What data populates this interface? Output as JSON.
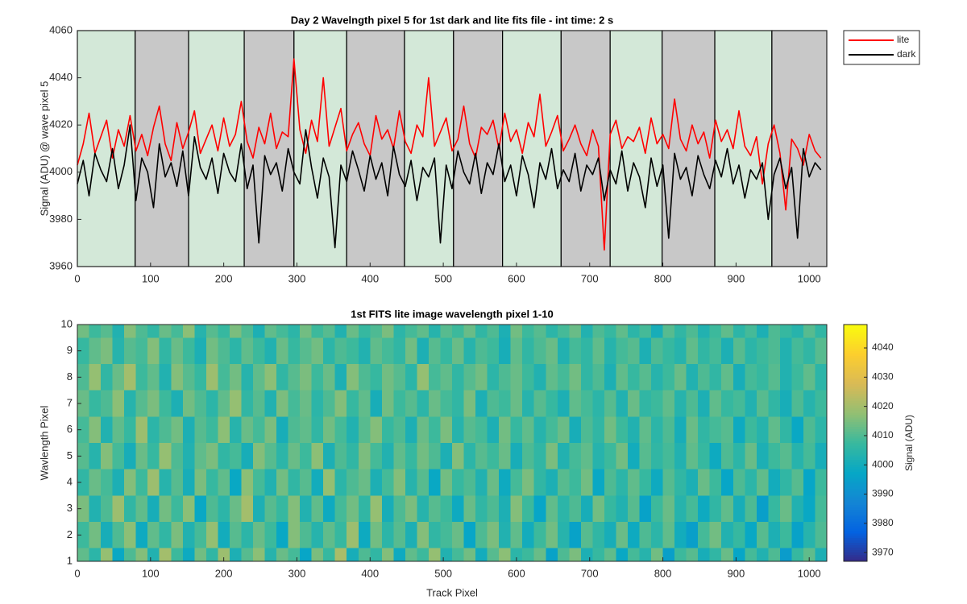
{
  "chart_data": [
    {
      "type": "line",
      "title": "Day 2 Wavelngth pixel 5 for 1st dark and lite fits file - int time: 2 s",
      "y_label": "Signal (ADU) @ wave pixel 5",
      "xlim": [
        0,
        1024
      ],
      "xticks": [
        0,
        100,
        200,
        300,
        400,
        500,
        600,
        700,
        800,
        900,
        1000
      ],
      "ylim": [
        3960,
        4060
      ],
      "yticks": [
        3960,
        3980,
        4000,
        4020,
        4040,
        4060
      ],
      "legend": "outside-top-right",
      "regions": [
        {
          "start": 0,
          "end": 79,
          "color": "#d3e8d8"
        },
        {
          "start": 79,
          "end": 152,
          "color": "#c8c8c8"
        },
        {
          "start": 152,
          "end": 228,
          "color": "#d3e8d8"
        },
        {
          "start": 228,
          "end": 296,
          "color": "#c8c8c8"
        },
        {
          "start": 296,
          "end": 368,
          "color": "#d3e8d8"
        },
        {
          "start": 368,
          "end": 447,
          "color": "#c8c8c8"
        },
        {
          "start": 447,
          "end": 514,
          "color": "#d3e8d8"
        },
        {
          "start": 514,
          "end": 581,
          "color": "#c8c8c8"
        },
        {
          "start": 581,
          "end": 661,
          "color": "#d3e8d8"
        },
        {
          "start": 661,
          "end": 728,
          "color": "#c8c8c8"
        },
        {
          "start": 728,
          "end": 799,
          "color": "#d3e8d8"
        },
        {
          "start": 799,
          "end": 871,
          "color": "#c8c8c8"
        },
        {
          "start": 871,
          "end": 949,
          "color": "#d3e8d8"
        },
        {
          "start": 949,
          "end": 1024,
          "color": "#c8c8c8"
        }
      ],
      "x": [
        0,
        8,
        16,
        24,
        32,
        40,
        48,
        56,
        64,
        72,
        80,
        88,
        96,
        104,
        112,
        120,
        128,
        136,
        144,
        152,
        160,
        168,
        176,
        184,
        192,
        200,
        208,
        216,
        224,
        232,
        240,
        248,
        256,
        264,
        272,
        280,
        288,
        296,
        304,
        312,
        320,
        328,
        336,
        344,
        352,
        360,
        368,
        376,
        384,
        392,
        400,
        408,
        416,
        424,
        432,
        440,
        448,
        456,
        464,
        472,
        480,
        488,
        496,
        504,
        512,
        520,
        528,
        536,
        544,
        552,
        560,
        568,
        576,
        584,
        592,
        600,
        608,
        616,
        624,
        632,
        640,
        648,
        656,
        664,
        672,
        680,
        688,
        696,
        704,
        712,
        720,
        728,
        736,
        744,
        752,
        760,
        768,
        776,
        784,
        792,
        800,
        808,
        816,
        824,
        832,
        840,
        848,
        856,
        864,
        872,
        880,
        888,
        896,
        904,
        912,
        920,
        928,
        936,
        944,
        952,
        960,
        968,
        976,
        984,
        992,
        1000,
        1008,
        1016
      ],
      "series": [
        {
          "name": "lite",
          "color": "#ff0000",
          "values": [
            4003,
            4012,
            4025,
            4008,
            4015,
            4022,
            4006,
            4018,
            4011,
            4024,
            4009,
            4016,
            4007,
            4019,
            4028,
            4012,
            4005,
            4021,
            4010,
            4017,
            4026,
            4008,
            4014,
            4020,
            4009,
            4023,
            4011,
            4016,
            4030,
            4013,
            4006,
            4019,
            4012,
            4025,
            4010,
            4017,
            4015,
            4048,
            4018,
            4008,
            4022,
            4013,
            4040,
            4011,
            4019,
            4027,
            4009,
            4016,
            4021,
            4012,
            4007,
            4024,
            4014,
            4018,
            4010,
            4026,
            4013,
            4008,
            4020,
            4015,
            4040,
            4011,
            4017,
            4023,
            4009,
            4014,
            4028,
            4012,
            4006,
            4019,
            4016,
            4022,
            4010,
            4025,
            4013,
            4018,
            4008,
            4021,
            4015,
            4033,
            4011,
            4017,
            4024,
            4009,
            4014,
            4020,
            4012,
            4007,
            4018,
            4011,
            3967,
            4016,
            4022,
            4010,
            4015,
            4013,
            4019,
            4008,
            4023,
            4012,
            4016,
            4010,
            4031,
            4014,
            4009,
            4020,
            4012,
            4017,
            4006,
            4022,
            4013,
            4018,
            4010,
            4026,
            4011,
            4007,
            4015,
            3995,
            4012,
            4020,
            4008,
            3984,
            4014,
            4010,
            4003,
            4016,
            4009,
            4006
          ]
        },
        {
          "name": "dark",
          "color": "#000000",
          "values": [
            3995,
            4005,
            3990,
            4008,
            4001,
            3996,
            4010,
            3993,
            4003,
            4020,
            3988,
            4006,
            4000,
            3985,
            4012,
            3998,
            4004,
            3994,
            4009,
            3990,
            4015,
            4002,
            3997,
            4006,
            3991,
            4008,
            4000,
            3996,
            4012,
            3993,
            4003,
            3970,
            4007,
            3999,
            4004,
            3992,
            4010,
            4000,
            3995,
            4018,
            4002,
            3989,
            4006,
            3998,
            3968,
            4003,
            3996,
            4009,
            4001,
            3992,
            4007,
            3997,
            4004,
            3990,
            4011,
            3999,
            3994,
            4005,
            3988,
            4002,
            3998,
            4006,
            3970,
            4003,
            3993,
            4009,
            4000,
            3995,
            4008,
            3991,
            4004,
            3999,
            4012,
            3996,
            4003,
            3990,
            4007,
            3999,
            3985,
            4004,
            3997,
            4010,
            3993,
            4001,
            3996,
            4008,
            3992,
            4003,
            3999,
            4006,
            3988,
            4001,
            3995,
            4009,
            3992,
            4004,
            3998,
            3985,
            4006,
            3994,
            4003,
            3972,
            4008,
            3997,
            4002,
            3990,
            4007,
            3999,
            3993,
            4005,
            3998,
            4010,
            3995,
            4003,
            3989,
            4001,
            3997,
            4004,
            3980,
            3999,
            4006,
            3993,
            4002,
            3972,
            4010,
            3998,
            4004,
            4001
          ]
        }
      ]
    },
    {
      "type": "heatmap",
      "title": "1st FITS lite image wavelength pixel 1-10",
      "x_label": "Track Pixel",
      "y_label": "Wavlength Pixel",
      "xlim": [
        0,
        1024
      ],
      "xticks": [
        0,
        100,
        200,
        300,
        400,
        500,
        600,
        700,
        800,
        900,
        1000
      ],
      "ylim": [
        1,
        10
      ],
      "yticks": [
        1,
        2,
        3,
        4,
        5,
        6,
        7,
        8,
        9,
        10
      ],
      "colormap": "parula",
      "clim": [
        3967,
        4048
      ],
      "colorbar_ticks": [
        3970,
        3980,
        3990,
        4000,
        4010,
        4020,
        4030,
        4040
      ],
      "colorbar_label": "Signal (ADU)",
      "y": [
        1,
        2,
        3,
        4,
        5,
        6,
        7,
        8,
        9,
        10
      ],
      "z": [
        [
          4012,
          4005,
          4018,
          3998,
          4010,
          4016,
          4003,
          4020,
          4008,
          3999,
          4014,
          4006,
          4019,
          4002,
          4011,
          4017,
          4004,
          4013,
          4009,
          3997,
          4015,
          4007,
          4021,
          4001,
          4010,
          4006,
          4016,
          3999,
          4012,
          4008,
          4018,
          4003,
          4009,
          4014,
          4000,
          4011,
          4017,
          4005,
          4008,
          4013,
          3996,
          4010,
          4015,
          4002,
          4007,
          4012,
          3998,
          4009,
          4004,
          4014,
          3995,
          4008,
          4011,
          4001,
          4006,
          4013,
          3997,
          4009,
          4003,
          4010,
          3994,
          4007,
          4012,
          4002
        ],
        [
          4008,
          4014,
          4001,
          4010,
          4017,
          3999,
          4012,
          4006,
          4015,
          4003,
          4009,
          4018,
          4000,
          4011,
          4005,
          4013,
          4008,
          3998,
          4016,
          4010,
          4004,
          4012,
          4007,
          4019,
          3999,
          4014,
          4005,
          4011,
          4002,
          4016,
          4006,
          4009,
          4013,
          3997,
          4010,
          4015,
          4003,
          4012,
          4000,
          4008,
          4014,
          4004,
          3996,
          4011,
          4006,
          4001,
          4013,
          3999,
          4010,
          4005,
          4012,
          4000,
          3995,
          4009,
          4014,
          4003,
          4007,
          3998,
          4011,
          4002,
          4008,
          3996,
          4004,
          4010
        ],
        [
          4015,
          4003,
          4010,
          4019,
          4006,
          4012,
          4001,
          4014,
          4008,
          4017,
          3998,
          4010,
          4005,
          4013,
          4020,
          4002,
          4011,
          4007,
          4016,
          4003,
          4012,
          3999,
          4009,
          4014,
          4006,
          4018,
          4001,
          4010,
          4015,
          4004,
          4011,
          4008,
          3999,
          4013,
          4006,
          4010,
          4002,
          4016,
          4008,
          3997,
          4012,
          4005,
          4010,
          4001,
          4014,
          4007,
          4003,
          4011,
          3996,
          4008,
          4013,
          4004,
          4009,
          3999,
          4006,
          4012,
          4001,
          4010,
          3995,
          4007,
          4013,
          4003,
          3998,
          4009
        ],
        [
          4006,
          4013,
          4009,
          4002,
          4016,
          4008,
          4019,
          4004,
          4011,
          4001,
          4015,
          4007,
          4012,
          3998,
          4017,
          4009,
          4003,
          4014,
          4006,
          4011,
          4000,
          4018,
          4005,
          4010,
          4013,
          4002,
          4009,
          4016,
          4004,
          4011,
          3998,
          4014,
          4007,
          4010,
          4003,
          4013,
          3999,
          4009,
          4015,
          4006,
          4002,
          4011,
          4008,
          4014,
          3998,
          4010,
          4005,
          4012,
          4007,
          3999,
          4011,
          4006,
          4002,
          4013,
          4008,
          3997,
          4010,
          4005,
          4012,
          4000,
          4006,
          4011,
          3997,
          4008
        ],
        [
          4011,
          4004,
          4016,
          4009,
          4001,
          4013,
          4007,
          4018,
          4010,
          4003,
          4012,
          4015,
          4006,
          4009,
          4001,
          4016,
          4011,
          4005,
          4013,
          4008,
          4017,
          4002,
          4010,
          4006,
          4015,
          4009,
          4003,
          4012,
          4007,
          4014,
          4010,
          4002,
          4016,
          4005,
          4011,
          4008,
          4013,
          4001,
          4010,
          4006,
          4015,
          4003,
          4009,
          4012,
          4004,
          4008,
          4014,
          4000,
          4011,
          4006,
          4009,
          4003,
          4012,
          4007,
          3999,
          4010,
          4005,
          4013,
          4002,
          4008,
          4011,
          4004,
          4009,
          4001
        ],
        [
          4009,
          4016,
          4003,
          4012,
          4007,
          4019,
          4005,
          4010,
          4014,
          4002,
          4011,
          4008,
          4017,
          4004,
          4013,
          4009,
          4015,
          4001,
          4010,
          4012,
          4006,
          4014,
          4009,
          4003,
          4011,
          4016,
          4007,
          4010,
          4002,
          4013,
          4008,
          4015,
          4004,
          4011,
          4009,
          4002,
          4014,
          4007,
          4012,
          4004,
          4009,
          4013,
          4001,
          4010,
          4006,
          4014,
          4008,
          4003,
          4012,
          4005,
          4010,
          4001,
          4013,
          4006,
          4009,
          4011,
          3999,
          4008,
          4004,
          4012,
          4006,
          3998,
          4010,
          4005
        ],
        [
          4013,
          4007,
          4010,
          4017,
          4004,
          4011,
          4015,
          4008,
          4002,
          4014,
          4010,
          4005,
          4012,
          4018,
          4006,
          4011,
          4003,
          4015,
          4009,
          4013,
          4005,
          4010,
          4016,
          4007,
          4012,
          4001,
          4014,
          4008,
          4011,
          4005,
          4013,
          4009,
          4006,
          4015,
          4002,
          4010,
          4008,
          4013,
          4004,
          4011,
          4007,
          4002,
          4012,
          4009,
          4005,
          4011,
          4003,
          4013,
          4006,
          4008,
          4012,
          4004,
          4010,
          4002,
          4012,
          4007,
          4009,
          4003,
          4011,
          4006,
          4001,
          4010,
          4004,
          4008
        ],
        [
          4010,
          4018,
          4006,
          4013,
          4020,
          4008,
          4012,
          4003,
          4016,
          4011,
          4007,
          4019,
          4009,
          4014,
          4004,
          4012,
          4017,
          4006,
          4011,
          4015,
          4008,
          4013,
          4002,
          4016,
          4010,
          4007,
          4014,
          4011,
          4005,
          4018,
          4009,
          4012,
          4006,
          4011,
          4014,
          4005,
          4010,
          4013,
          4008,
          4003,
          4012,
          4009,
          4014,
          4006,
          4010,
          4002,
          4012,
          4007,
          4011,
          4004,
          4008,
          4013,
          4003,
          4010,
          4006,
          4012,
          4001,
          4009,
          4007,
          4011,
          4003,
          4008,
          4012,
          4005
        ],
        [
          4007,
          4012,
          4015,
          4004,
          4011,
          4009,
          4016,
          4006,
          4013,
          4008,
          4002,
          4014,
          4010,
          4005,
          4012,
          4008,
          4003,
          4013,
          4007,
          4011,
          4014,
          4005,
          4010,
          4008,
          4003,
          4012,
          4009,
          4006,
          4014,
          4002,
          4011,
          4007,
          4013,
          4004,
          4010,
          4008,
          4001,
          4012,
          4006,
          4010,
          4013,
          4003,
          4009,
          4006,
          4012,
          4004,
          4009,
          4011,
          4002,
          4010,
          4007,
          4004,
          4012,
          4006,
          4009,
          4002,
          4011,
          4005,
          4008,
          4010,
          4003,
          4009,
          4006,
          4011
        ],
        [
          4014,
          4008,
          4011,
          4003,
          4016,
          4010,
          4006,
          4013,
          4009,
          4017,
          4004,
          4011,
          4007,
          4015,
          4010,
          4002,
          4012,
          4009,
          4005,
          4014,
          4008,
          4011,
          4003,
          4013,
          4007,
          4010,
          4015,
          4005,
          4009,
          4012,
          4004,
          4011,
          4008,
          4013,
          4006,
          4010,
          4002,
          4014,
          4008,
          4011,
          4005,
          4009,
          4013,
          4003,
          4010,
          4007,
          4012,
          4005,
          4009,
          4001,
          4011,
          4006,
          4010,
          4003,
          4008,
          4012,
          4005,
          4009,
          4002,
          4010,
          4007,
          4004,
          4011,
          4006
        ]
      ]
    }
  ]
}
